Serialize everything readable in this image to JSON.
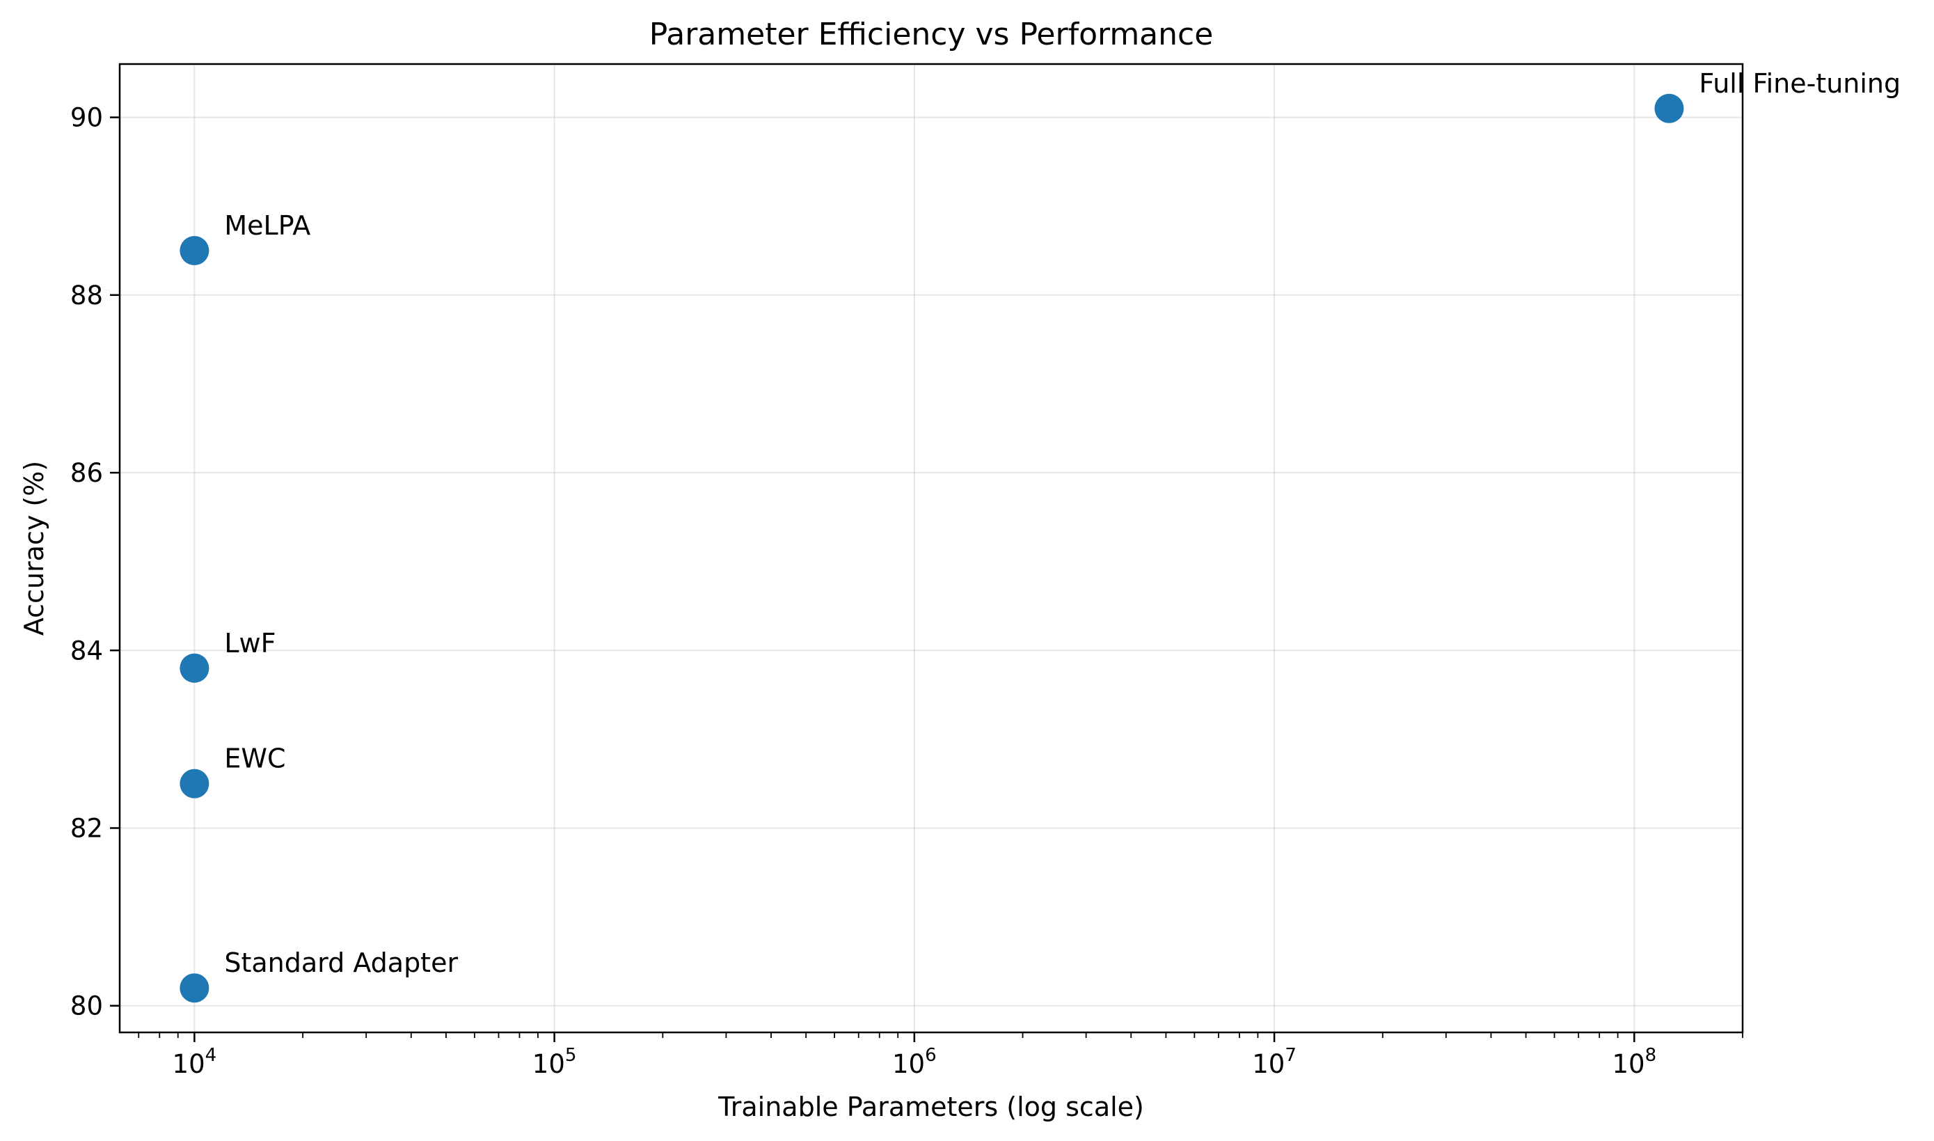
{
  "chart_data": {
    "type": "scatter",
    "title": "Parameter Efficiency vs Performance",
    "xlabel": "Trainable Parameters (log scale)",
    "ylabel": "Accuracy (%)",
    "xscale": "log",
    "xlim": [
      6200,
      200000000
    ],
    "ylim": [
      79.7,
      90.6
    ],
    "grid": true,
    "marker_color": "#1f77b4",
    "x_ticks": [
      {
        "value": 10000,
        "base": "10",
        "exp": "4"
      },
      {
        "value": 100000,
        "base": "10",
        "exp": "5"
      },
      {
        "value": 1000000,
        "base": "10",
        "exp": "6"
      },
      {
        "value": 10000000,
        "base": "10",
        "exp": "7"
      },
      {
        "value": 100000000,
        "base": "10",
        "exp": "8"
      }
    ],
    "y_ticks": [
      {
        "value": 80,
        "label": "80"
      },
      {
        "value": 82,
        "label": "82"
      },
      {
        "value": 84,
        "label": "84"
      },
      {
        "value": 86,
        "label": "86"
      },
      {
        "value": 88,
        "label": "88"
      },
      {
        "value": 90,
        "label": "90"
      }
    ],
    "points": [
      {
        "label": "Full Fine-tuning",
        "x": 125000000,
        "y": 90.1
      },
      {
        "label": "MeLPA",
        "x": 10000,
        "y": 88.5
      },
      {
        "label": "LwF",
        "x": 10000,
        "y": 83.8
      },
      {
        "label": "EWC",
        "x": 10000,
        "y": 82.5
      },
      {
        "label": "Standard Adapter",
        "x": 10000,
        "y": 80.2
      }
    ]
  }
}
